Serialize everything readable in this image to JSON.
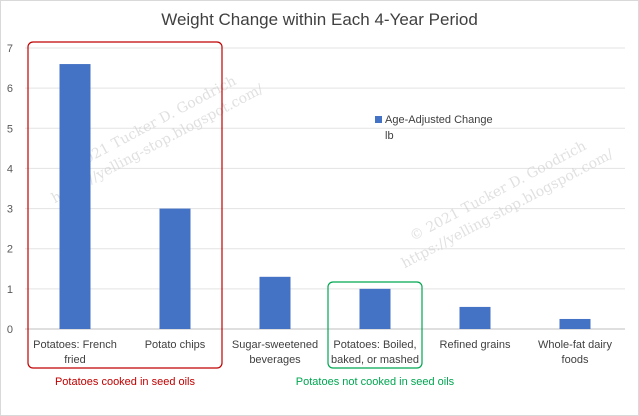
{
  "chart_data": {
    "type": "bar",
    "title": "Weight Change within Each 4-Year Period",
    "categories": [
      [
        "Potatoes: French",
        "fried"
      ],
      [
        "Potato chips"
      ],
      [
        "Sugar-sweetened",
        "beverages"
      ],
      [
        "Potatoes: Boiled,",
        "baked, or mashed"
      ],
      [
        "Refined grains"
      ],
      [
        "Whole-fat dairy",
        "foods"
      ]
    ],
    "series": [
      {
        "name": [
          "Age-Adjusted Change",
          "lb"
        ],
        "values": [
          6.6,
          3.0,
          1.3,
          1.0,
          0.55,
          0.25
        ],
        "color": "#4472c4"
      }
    ],
    "ylim": [
      0,
      7
    ],
    "yticks": [
      "0",
      "1",
      "2",
      "3",
      "4",
      "5",
      "6",
      "7"
    ],
    "grid": true,
    "legend_position": "right-center"
  },
  "annotations": [
    {
      "label": "Potatoes cooked in seed oils",
      "color": "#c00000",
      "categories": [
        0,
        1
      ]
    },
    {
      "label": "Potatoes not cooked in seed oils",
      "color": "#00a651",
      "categories": [
        3
      ]
    }
  ],
  "watermark": [
    {
      "line1": "© 2021 Tucker D. Goodrich",
      "line2": "https://yelling-stop.blogspot.com/"
    },
    {
      "line1": "© 2021 Tucker D. Goodrich",
      "line2": "https://yelling-stop.blogspot.com/"
    }
  ]
}
